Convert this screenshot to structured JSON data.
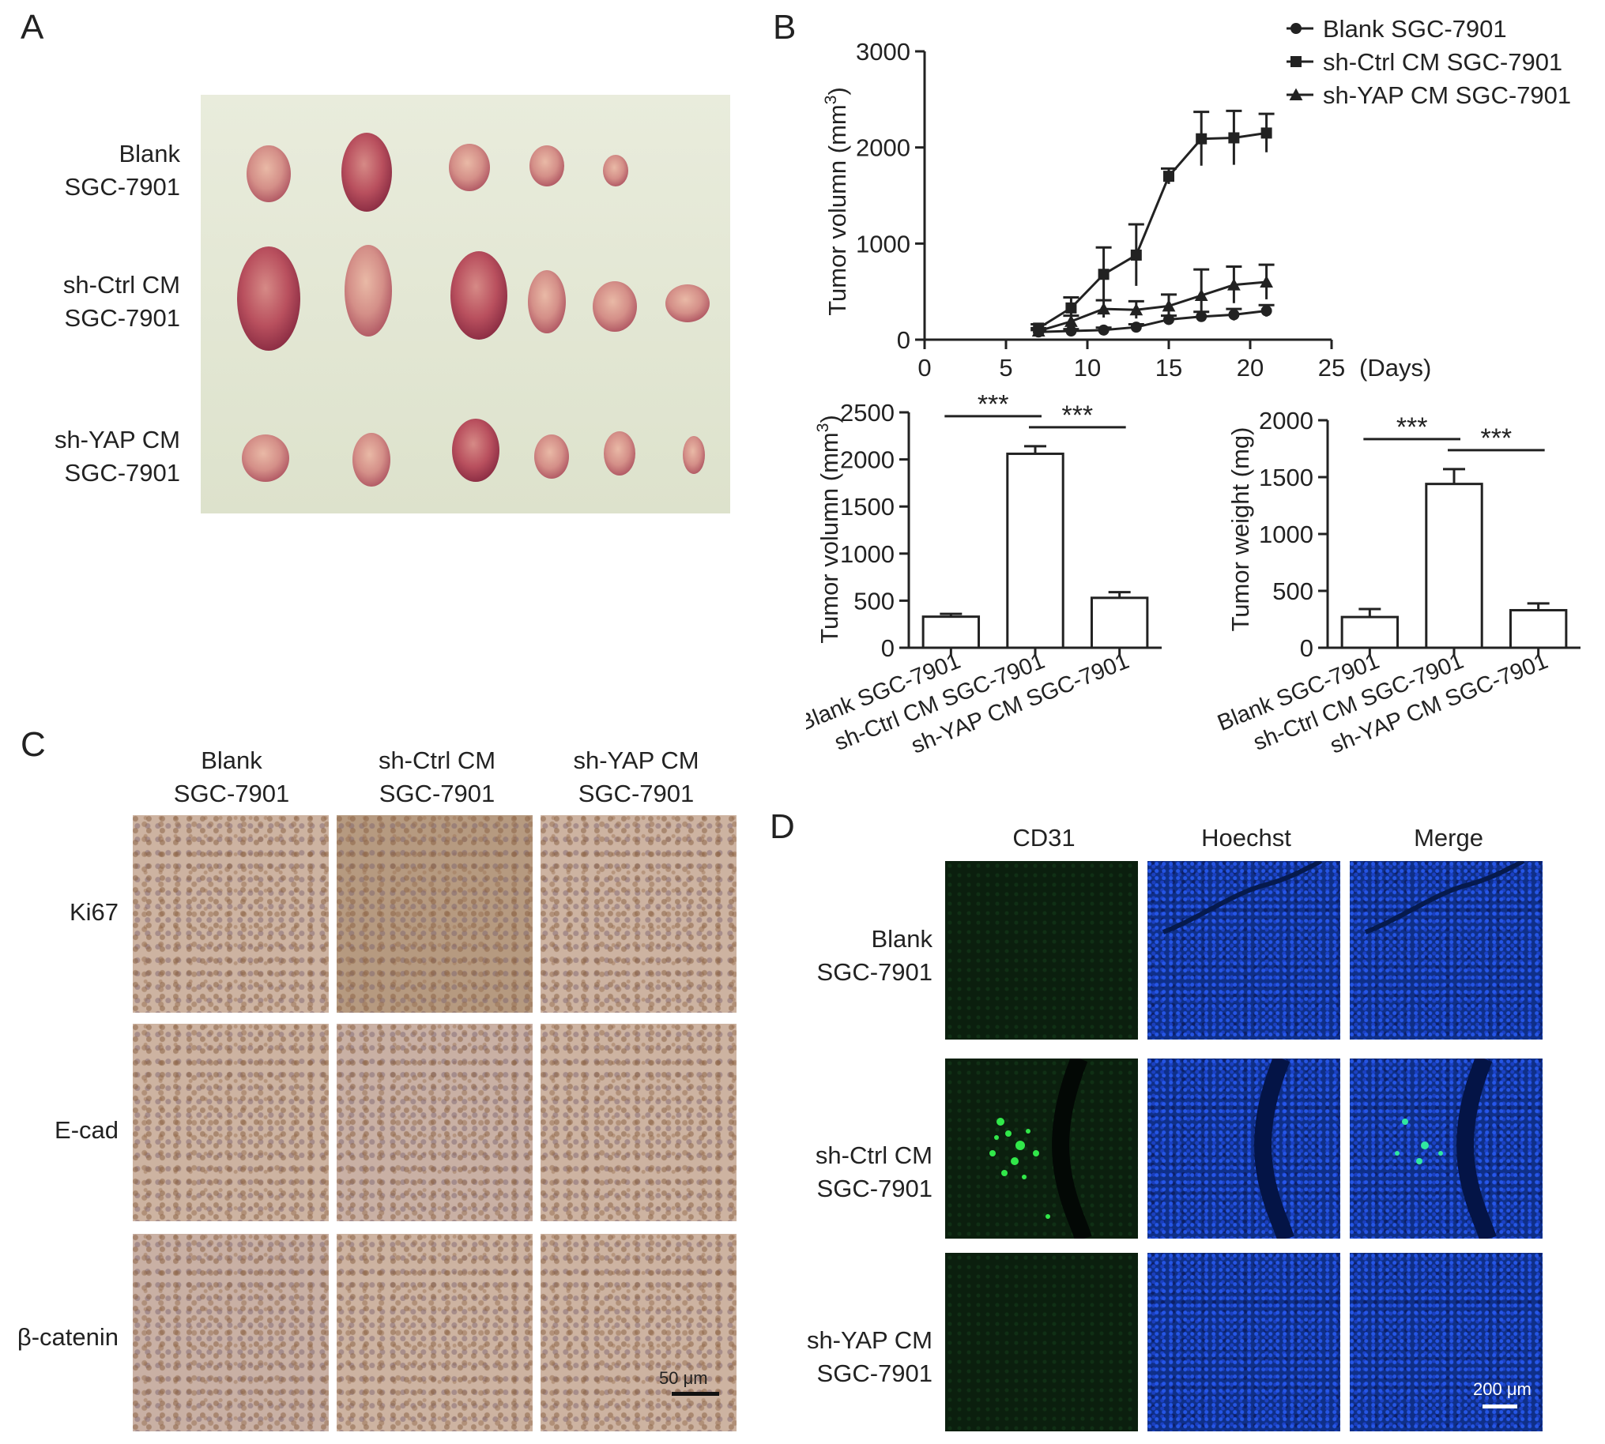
{
  "panels": {
    "A": {
      "letter": "A",
      "rows": [
        {
          "line1": "Blank",
          "line2": "SGC-7901"
        },
        {
          "line1": "sh-Ctrl CM",
          "line2": "SGC-7901"
        },
        {
          "line1": "sh-YAP CM",
          "line2": "SGC-7901"
        }
      ]
    },
    "B": {
      "letter": "B"
    },
    "C": {
      "letter": "C",
      "columns": [
        {
          "line1": "Blank",
          "line2": "SGC-7901"
        },
        {
          "line1": "sh-Ctrl CM",
          "line2": "SGC-7901"
        },
        {
          "line1": "sh-YAP CM",
          "line2": "SGC-7901"
        }
      ],
      "rows": [
        "Ki67",
        "E-cad",
        "β-catenin"
      ],
      "scale_bar": "50 μm"
    },
    "D": {
      "letter": "D",
      "columns": [
        "CD31",
        "Hoechst",
        "Merge"
      ],
      "rows": [
        {
          "line1": "Blank",
          "line2": "SGC-7901"
        },
        {
          "line1": "sh-Ctrl CM",
          "line2": "SGC-7901"
        },
        {
          "line1": "sh-YAP CM",
          "line2": "SGC-7901"
        }
      ],
      "scale_bar": "200 μm"
    }
  },
  "colors": {
    "ink": "#222222",
    "hoechst_blue": "#1846d8",
    "cd31_green": "#31e84a",
    "photo_bg": "#e6ead8",
    "tumor": "#c9797a"
  },
  "chart_data": [
    {
      "type": "line",
      "ylabel": "Tumor volumn (mm",
      "ylabel_sup": "3",
      "ylabel_close": ")",
      "xunit": "(Days)",
      "xlim": [
        0,
        25
      ],
      "ylim": [
        0,
        3000
      ],
      "xticks": [
        0,
        5,
        10,
        15,
        20,
        25
      ],
      "yticks": [
        0,
        1000,
        2000,
        3000
      ],
      "legend_position": "top-right",
      "series": [
        {
          "name": "Blank SGC-7901",
          "marker": "circle",
          "x": [
            7,
            9,
            11,
            13,
            15,
            17,
            19,
            21
          ],
          "y": [
            80,
            90,
            100,
            130,
            210,
            240,
            260,
            300
          ],
          "err": [
            20,
            20,
            25,
            30,
            40,
            50,
            60,
            60
          ]
        },
        {
          "name": "sh-Ctrl CM SGC-7901",
          "marker": "square",
          "x": [
            7,
            9,
            11,
            13,
            15,
            17,
            19,
            21
          ],
          "y": [
            120,
            330,
            680,
            880,
            1700,
            2090,
            2100,
            2150
          ],
          "err": [
            40,
            110,
            280,
            320,
            80,
            280,
            280,
            200
          ]
        },
        {
          "name": "sh-YAP CM SGC-7901",
          "marker": "triangle",
          "x": [
            7,
            9,
            11,
            13,
            15,
            17,
            19,
            21
          ],
          "y": [
            90,
            190,
            320,
            310,
            350,
            460,
            570,
            600
          ],
          "err": [
            30,
            60,
            90,
            90,
            120,
            270,
            190,
            180
          ]
        }
      ]
    },
    {
      "type": "bar",
      "ylabel": "Tumor volumn (mm",
      "ylabel_sup": "3",
      "ylabel_close": ")",
      "categories": [
        "Blank SGC-7901",
        "sh-Ctrl CM SGC-7901",
        "sh-YAP CM SGC-7901"
      ],
      "values": [
        330,
        2060,
        530
      ],
      "errors": [
        30,
        80,
        60
      ],
      "ylim": [
        0,
        2500
      ],
      "yticks": [
        0,
        500,
        1000,
        1500,
        2000,
        2500
      ],
      "significance": [
        {
          "from": 0,
          "to": 1,
          "label": "***"
        },
        {
          "from": 1,
          "to": 2,
          "label": "***"
        }
      ]
    },
    {
      "type": "bar",
      "ylabel": "Tumor weight (mg)",
      "categories": [
        "Blank SGC-7901",
        "sh-Ctrl CM SGC-7901",
        "sh-YAP CM SGC-7901"
      ],
      "values": [
        270,
        1440,
        330
      ],
      "errors": [
        70,
        130,
        60
      ],
      "ylim": [
        0,
        2000
      ],
      "yticks": [
        0,
        500,
        1000,
        1500,
        2000
      ],
      "significance": [
        {
          "from": 0,
          "to": 1,
          "label": "***"
        },
        {
          "from": 1,
          "to": 2,
          "label": "***"
        }
      ]
    }
  ]
}
